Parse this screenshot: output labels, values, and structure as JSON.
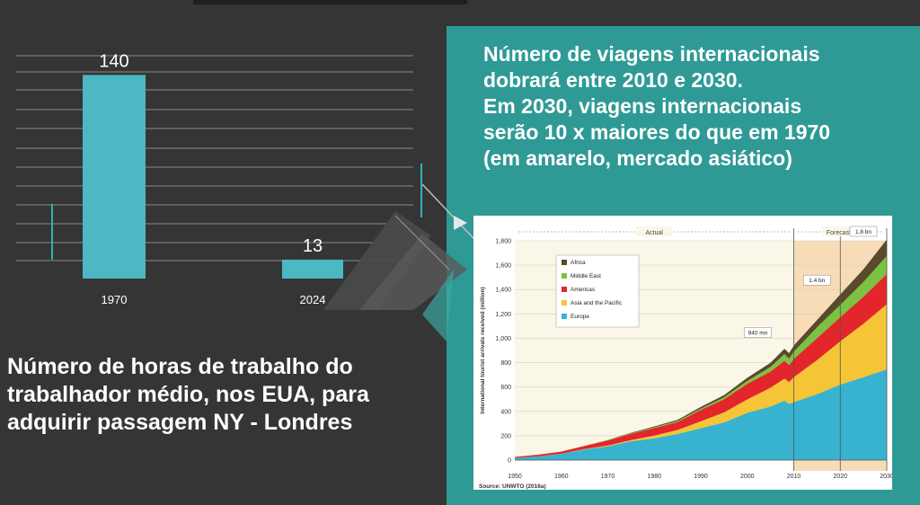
{
  "left_caption": {
    "line1": "Número de horas de trabalho do",
    "line2": "trabalhador médio, nos EUA,  para",
    "line3": "adquirir passagem NY - Londres"
  },
  "right_title": {
    "line1": "Número de viagens internacionais",
    "line2": "dobrará entre 2010 e 2030.",
    "line3": "Em 2030, viagens internacionais",
    "line4": "serão 10 x maiores do que em 1970",
    "line5": "(em amarelo, mercado asiático)"
  },
  "colors": {
    "background": "#353535",
    "teal_panel": "#2f9a95",
    "bar": "#4cb8c4",
    "africa": "#5a4a2c",
    "middle_east": "#7cc242",
    "americas": "#e2262b",
    "asia_pacific": "#f5c437",
    "europe": "#37b3cf",
    "forecast_band": "#f8dcb8"
  },
  "chart_data": [
    {
      "type": "bar",
      "categories": [
        "1970",
        "2024"
      ],
      "values": [
        140,
        13
      ],
      "data_labels": [
        "140",
        "13"
      ],
      "ylim": [
        0,
        150
      ],
      "grid": true
    },
    {
      "type": "area",
      "stacked": true,
      "ylabel": "International tourist arrivals received (million)",
      "source": "Source: UNWTO (2016a)",
      "ylim": [
        0,
        1800
      ],
      "xlim": [
        1950,
        2030
      ],
      "yticks": [
        "0",
        "200",
        "400",
        "600",
        "800",
        "1,000",
        "1,200",
        "1,400",
        "1,600",
        "1,800"
      ],
      "xticks": [
        "1950",
        "1960",
        "1970",
        "1980",
        "1990",
        "2000",
        "2010",
        "2020",
        "2030"
      ],
      "period_labels": [
        "Actual",
        "Forecasts"
      ],
      "annotations": [
        {
          "text": "940 mn",
          "x": 2010,
          "y": 940
        },
        {
          "text": "1.4 bn",
          "x": 2020,
          "y": 1400
        },
        {
          "text": "1.8 bn",
          "x": 2030,
          "y": 1800
        }
      ],
      "legend_position": "top-left",
      "x": [
        1950,
        1955,
        1960,
        1965,
        1970,
        1975,
        1980,
        1985,
        1990,
        1995,
        2000,
        2005,
        2008,
        2009,
        2010,
        2015,
        2020,
        2025,
        2030
      ],
      "series": [
        {
          "name": "Europe",
          "color": "#37b3cf",
          "values": [
            17,
            30,
            51,
            88,
            113,
            155,
            178,
            215,
            262,
            309,
            388,
            440,
            487,
            460,
            476,
            540,
            620,
            680,
            744
          ]
        },
        {
          "name": "Asia and the Pacific",
          "color": "#f5c437",
          "values": [
            0.2,
            0.6,
            1,
            3,
            6,
            9,
            23,
            32,
            56,
            82,
            110,
            154,
            181,
            180,
            204,
            280,
            355,
            440,
            535
          ]
        },
        {
          "name": "Americas",
          "color": "#e2262b",
          "values": [
            8,
            13,
            17,
            24,
            42,
            52,
            62,
            65,
            93,
            109,
            128,
            133,
            147,
            140,
            150,
            180,
            199,
            222,
            248
          ]
        },
        {
          "name": "Middle East",
          "color": "#7cc242",
          "values": [
            0.2,
            0.4,
            0.6,
            1,
            2,
            4,
            7,
            8,
            10,
            14,
            24,
            37,
            55,
            52,
            60,
            90,
            101,
            120,
            149
          ]
        },
        {
          "name": "Africa",
          "color": "#5a4a2c",
          "values": [
            0.5,
            0.8,
            0.8,
            1.4,
            2,
            4,
            7,
            10,
            15,
            19,
            26,
            35,
            44,
            46,
            50,
            60,
            85,
            105,
            134
          ]
        }
      ]
    }
  ]
}
